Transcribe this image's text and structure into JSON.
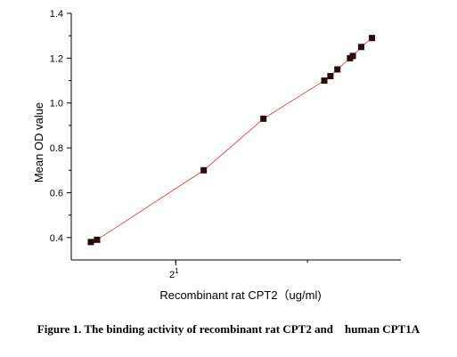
{
  "chart_data": {
    "type": "scatter",
    "x_scale": "log2",
    "xlabel": "Recombinant rat CPT2（ug/ml)",
    "ylabel": "Mean OD value",
    "xlim": [
      1.45,
      4.0
    ],
    "ylim": [
      0.3,
      1.4
    ],
    "x_ticks": [
      {
        "value": 2,
        "label": "2",
        "exp": "1"
      }
    ],
    "y_ticks": [
      0.4,
      0.6,
      0.8,
      1.0,
      1.2,
      1.4
    ],
    "y_tick_labels": [
      "0.4",
      "0.6",
      "0.8",
      "1.0",
      "1.2",
      "1.4"
    ],
    "series": [
      {
        "points": [
          {
            "x": 1.54,
            "y": 0.38
          },
          {
            "x": 1.57,
            "y": 0.39
          },
          {
            "x": 2.18,
            "y": 0.7
          },
          {
            "x": 2.62,
            "y": 0.93
          },
          {
            "x": 3.16,
            "y": 1.1
          },
          {
            "x": 3.22,
            "y": 1.12
          },
          {
            "x": 3.29,
            "y": 1.15
          },
          {
            "x": 3.42,
            "y": 1.2
          },
          {
            "x": 3.45,
            "y": 1.21
          },
          {
            "x": 3.54,
            "y": 1.25
          },
          {
            "x": 3.66,
            "y": 1.29
          }
        ],
        "marker_color": "#2a0a0a",
        "line_color": "#e05a5a"
      }
    ],
    "grid": false,
    "legend": "none"
  },
  "caption": "Figure 1. The binding activity of recombinant rat CPT2 and    human CPT1A"
}
